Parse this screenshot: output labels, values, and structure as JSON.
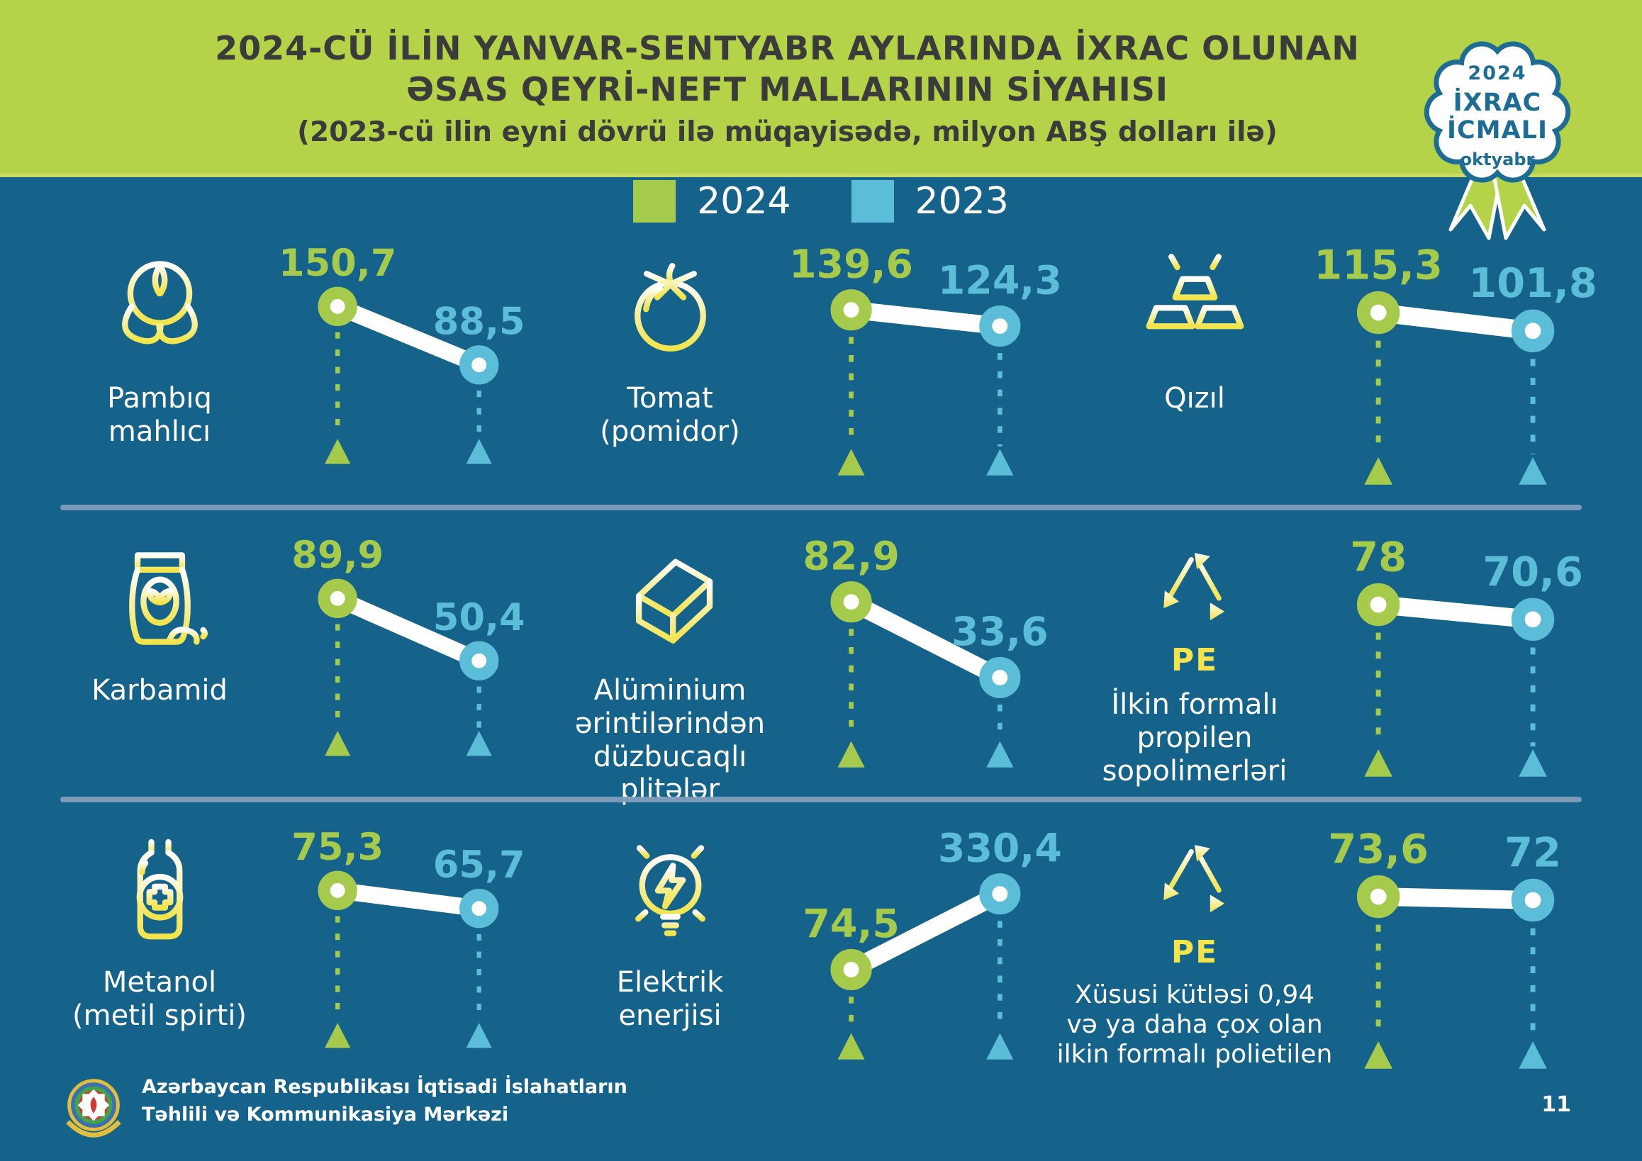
{
  "header": {
    "title_line1": "2024-CÜ İLİN YANVAR-SENTYABR AYLARINDA İXRAC OLUNAN",
    "title_line2": "ƏSAS QEYRİ-NEFT MALLARININ SİYAHISI",
    "subtitle": "(2023-cü ilin eyni dövrü ilə müqayisədə, milyon ABŞ dolları ilə)"
  },
  "badge": {
    "year": "2024",
    "line1": "İXRAC",
    "line2": "İCMALI",
    "month": "oktyabr"
  },
  "footer": {
    "org_line1": "Azərbaycan Respublikası İqtisadi İslahatların",
    "org_line2": "Təhlili və Kommunikasiya Mərkəzi",
    "page_number": "11"
  },
  "colors": {
    "header_background": "#B5D348",
    "page_background": "#15628A",
    "accent_2024": "#A6CB4C",
    "accent_2023": "#5BBDD8",
    "icon_yellow": "#F2E44A",
    "divider": "#7E9EBC",
    "badge_teal": "#1D6C94",
    "title_text": "#3B3B3B"
  },
  "chart_data": {
    "type": "line",
    "subtype": "slope-comparison-per-product",
    "unit": "milyon ABŞ dolları",
    "series": [
      "2024",
      "2023"
    ],
    "legend_position": "top-center",
    "items": [
      {
        "label": "Pambıq\nmahlıcı",
        "icon": "cotton-icon",
        "values": {
          "2024": 150.7,
          "2023": 88.5
        },
        "display": {
          "2024": "150,7",
          "2023": "88,5"
        }
      },
      {
        "label": "Tomat\n(pomidor)",
        "icon": "tomato-icon",
        "values": {
          "2024": 139.6,
          "2023": 124.3
        },
        "display": {
          "2024": "139,6",
          "2023": "124,3"
        }
      },
      {
        "label": "Qızıl",
        "icon": "gold-bars-icon",
        "values": {
          "2024": 115.3,
          "2023": 101.8
        },
        "display": {
          "2024": "115,3",
          "2023": "101,8"
        }
      },
      {
        "label": "Karbamid",
        "icon": "fertilizer-bag-icon",
        "values": {
          "2024": 89.9,
          "2023": 50.4
        },
        "display": {
          "2024": "89,9",
          "2023": "50,4"
        }
      },
      {
        "label": "Alüminium\nərintilərindən\ndüzbucaqlı\nplitələr",
        "icon": "aluminium-plate-icon",
        "values": {
          "2024": 82.9,
          "2023": 33.6
        },
        "display": {
          "2024": "82,9",
          "2023": "33,6"
        }
      },
      {
        "label": "İlkin formalı\npropilen\nsopolimerləri",
        "icon": "recycle-pe-icon",
        "icon_caption": "PE",
        "values": {
          "2024": 78,
          "2023": 70.6
        },
        "display": {
          "2024": "78",
          "2023": "70,6"
        }
      },
      {
        "label": "Metanol\n(metil spirti)",
        "icon": "methanol-bottle-icon",
        "values": {
          "2024": 75.3,
          "2023": 65.7
        },
        "display": {
          "2024": "75,3",
          "2023": "65,7"
        }
      },
      {
        "label": "Elektrik\nenerjisi",
        "icon": "electricity-bulb-icon",
        "values": {
          "2024": 74.5,
          "2023": 330.4
        },
        "display": {
          "2024": "74,5",
          "2023": "330,4"
        }
      },
      {
        "label": "Xüsusi kütləsi 0,94\nvə ya daha çox olan\nilkin formalı polietilen",
        "icon": "recycle-pe-icon",
        "icon_caption": "PE",
        "label_size": "small",
        "values": {
          "2024": 73.6,
          "2023": 72
        },
        "display": {
          "2024": "73,6",
          "2023": "72"
        }
      }
    ]
  }
}
